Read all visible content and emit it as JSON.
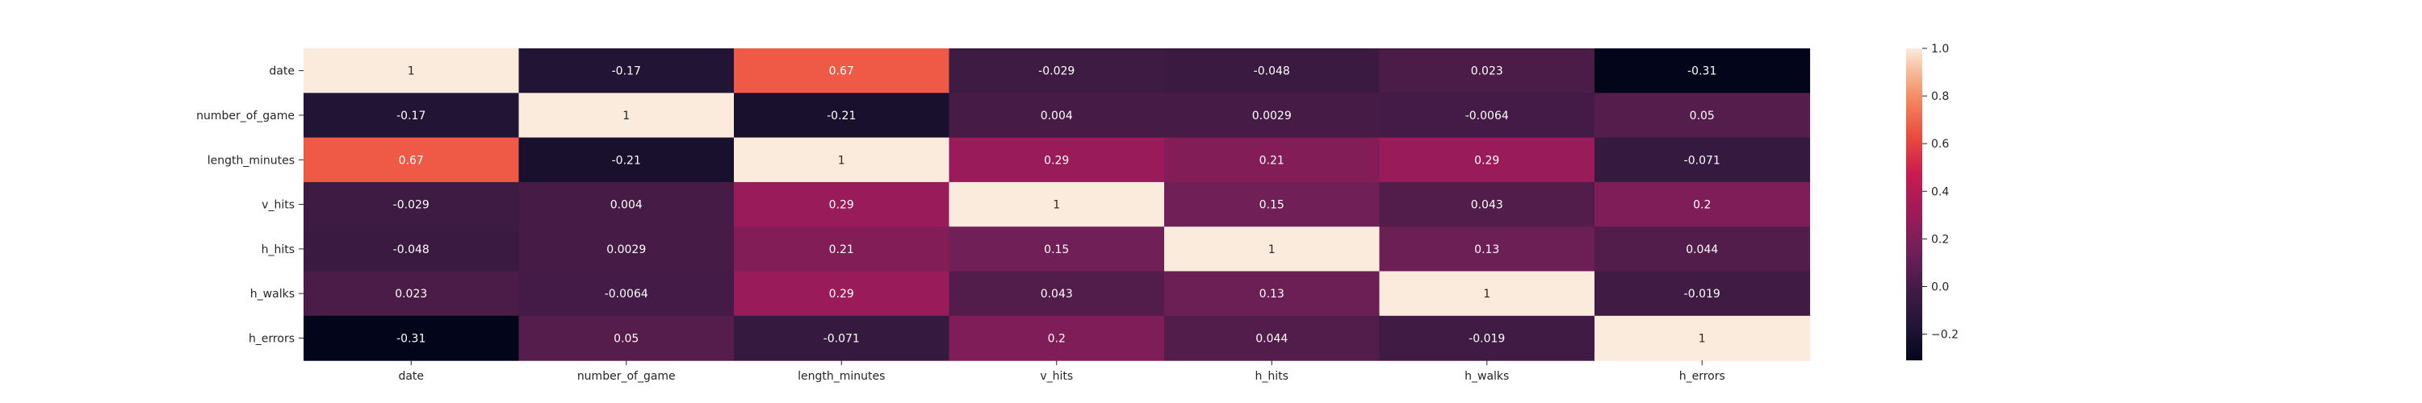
{
  "chart_data": {
    "type": "heatmap",
    "title": "",
    "xlabel": "",
    "ylabel": "",
    "rows": [
      "date",
      "number_of_game",
      "length_minutes",
      "v_hits",
      "h_hits",
      "h_walks",
      "h_errors"
    ],
    "columns": [
      "date",
      "number_of_game",
      "length_minutes",
      "v_hits",
      "h_hits",
      "h_walks",
      "h_errors"
    ],
    "values": [
      [
        1,
        -0.17,
        0.67,
        -0.029,
        -0.048,
        0.023,
        -0.31
      ],
      [
        -0.17,
        1,
        -0.21,
        0.004,
        0.0029,
        -0.0064,
        0.05
      ],
      [
        0.67,
        -0.21,
        1,
        0.29,
        0.21,
        0.29,
        -0.071
      ],
      [
        -0.029,
        0.004,
        0.29,
        1,
        0.15,
        0.043,
        0.2
      ],
      [
        -0.048,
        0.0029,
        0.21,
        0.15,
        1,
        0.13,
        0.044
      ],
      [
        0.023,
        -0.0064,
        0.29,
        0.043,
        0.13,
        1,
        -0.019
      ],
      [
        -0.31,
        0.05,
        -0.071,
        0.2,
        0.044,
        -0.019,
        1
      ]
    ],
    "labels": [
      [
        "1",
        "-0.17",
        "0.67",
        "-0.029",
        "-0.048",
        "0.023",
        "-0.31"
      ],
      [
        "-0.17",
        "1",
        "-0.21",
        "0.004",
        "0.0029",
        "-0.0064",
        "0.05"
      ],
      [
        "0.67",
        "-0.21",
        "1",
        "0.29",
        "0.21",
        "0.29",
        "-0.071"
      ],
      [
        "-0.029",
        "0.004",
        "0.29",
        "1",
        "0.15",
        "0.043",
        "0.2"
      ],
      [
        "-0.048",
        "0.0029",
        "0.21",
        "0.15",
        "1",
        "0.13",
        "0.044"
      ],
      [
        "0.023",
        "-0.0064",
        "0.29",
        "0.043",
        "0.13",
        "1",
        "-0.019"
      ],
      [
        "-0.31",
        "0.05",
        "-0.071",
        "0.2",
        "0.044",
        "-0.019",
        "1"
      ]
    ],
    "value_range": [
      -0.31,
      1.0
    ],
    "colormap": "rocket",
    "colorbar": {
      "ticks": [
        -0.2,
        0.0,
        0.2,
        0.4,
        0.6,
        0.8,
        1.0
      ],
      "tick_labels": [
        "−0.2",
        "0.0",
        "0.2",
        "0.4",
        "0.6",
        "0.8",
        "1.0"
      ]
    },
    "grid": false
  }
}
